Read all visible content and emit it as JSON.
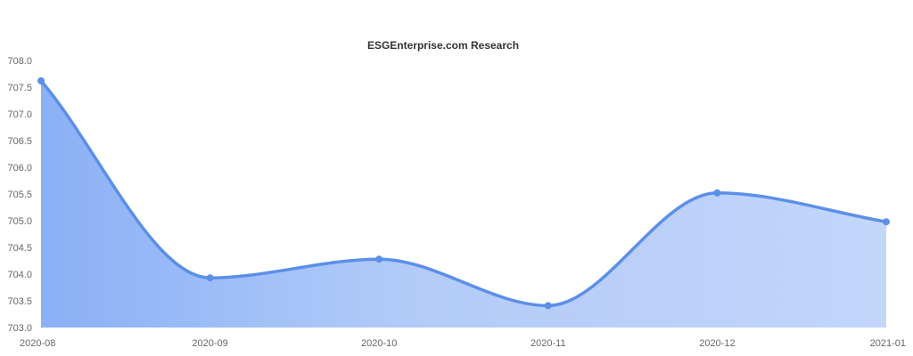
{
  "chart_data": {
    "type": "area",
    "title": "ESGEnterprise.com Research",
    "xlabel": "",
    "ylabel": "",
    "x": [
      "2020-08",
      "2020-09",
      "2020-10",
      "2020-11",
      "2020-12",
      "2021-01"
    ],
    "series": [
      {
        "values": [
          707.62,
          703.93,
          704.28,
          703.41,
          705.52,
          704.98
        ]
      }
    ],
    "ylim": [
      703.0,
      708.0
    ],
    "yticks": [
      "703.0",
      "703.5",
      "704.0",
      "704.5",
      "705.0",
      "705.5",
      "706.0",
      "706.5",
      "707.0",
      "707.5",
      "708.0"
    ],
    "smooth": true,
    "grid": false,
    "legend": "none",
    "colors": {
      "line": "#5b8fe8",
      "marker": "#5b8fe8",
      "fill_start": "#7da7f5",
      "fill_end": "#c0d4fa",
      "title": "#333333",
      "tick": "#666666"
    }
  }
}
